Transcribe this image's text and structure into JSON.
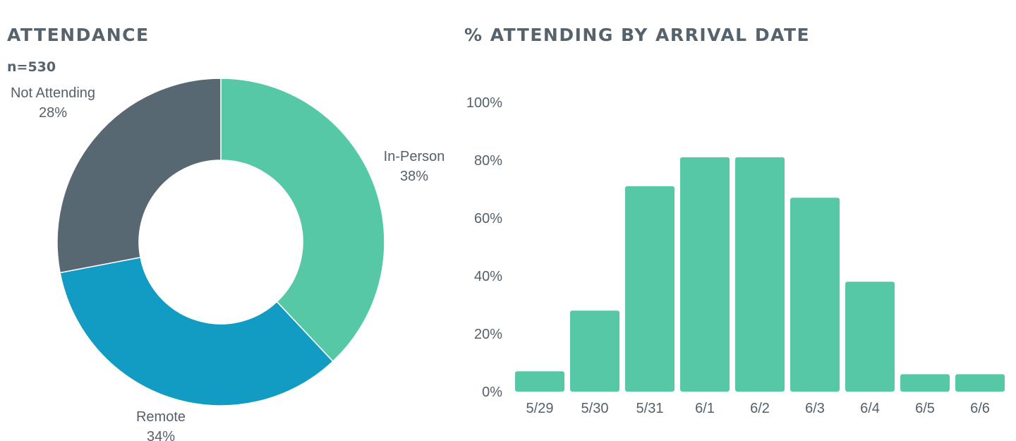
{
  "colors": {
    "in_person": "#56c8a6",
    "remote": "#129cc3",
    "not_attending": "#586873",
    "bar": "#56c8a6",
    "title": "#56636d",
    "text": "#55606b"
  },
  "chart_data": [
    {
      "type": "pie",
      "title": "ATTENDANCE",
      "subtitle": "n=530",
      "donut": true,
      "slices": [
        {
          "name": "In-Person",
          "value": 38,
          "label": "38%",
          "color": "#56c8a6"
        },
        {
          "name": "Remote",
          "value": 34,
          "label": "34%",
          "color": "#129cc3"
        },
        {
          "name": "Not Attending",
          "value": 28,
          "label": "28%",
          "color": "#586873"
        }
      ]
    },
    {
      "type": "bar",
      "title": "% ATTENDING BY ARRIVAL DATE",
      "categories": [
        "5/29",
        "5/30",
        "5/31",
        "6/1",
        "6/2",
        "6/3",
        "6/4",
        "6/5",
        "6/6"
      ],
      "values": [
        7,
        28,
        71,
        81,
        81,
        67,
        38,
        6,
        6
      ],
      "xlabel": "",
      "ylabel": "",
      "ylim": [
        0,
        100
      ],
      "yticks": [
        "0%",
        "20%",
        "40%",
        "60%",
        "80%",
        "100%"
      ],
      "grid": false,
      "color": "#56c8a6"
    }
  ]
}
